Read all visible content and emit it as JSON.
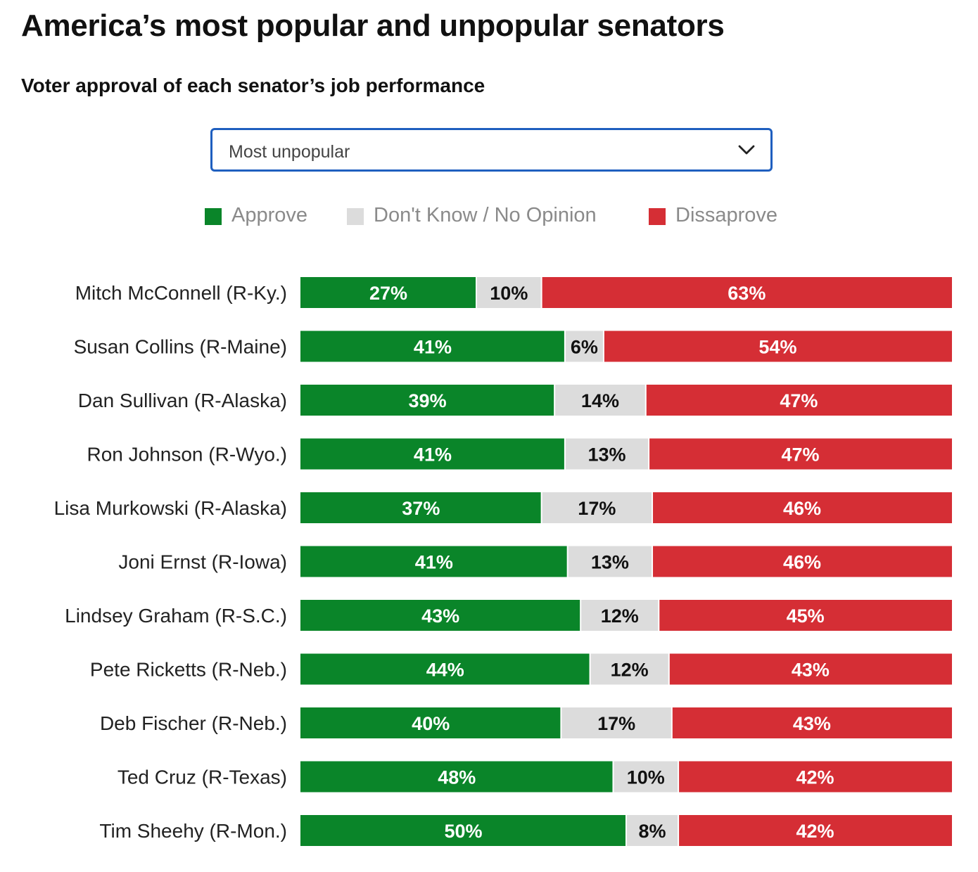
{
  "title": "America’s most popular and unpopular senators",
  "subtitle": "Voter approval of each senator’s job performance",
  "dropdown": {
    "selected": "Most unpopular",
    "icon": "chevron-down-icon"
  },
  "legend": [
    {
      "label": "Approve",
      "color": "#0a8529"
    },
    {
      "label": "Don't Know / No Opinion",
      "color": "#dcdcdc"
    },
    {
      "label": "Dissaprove",
      "color": "#d52e35"
    }
  ],
  "chart_data": {
    "type": "bar",
    "orientation": "horizontal",
    "stacked": true,
    "title": "America’s most popular and unpopular senators",
    "subtitle": "Voter approval of each senator’s job performance",
    "xlabel": "",
    "ylabel": "",
    "xlim": [
      0,
      100
    ],
    "grid": false,
    "legend_position": "top",
    "categories": [
      "Mitch McConnell (R-Ky.)",
      "Susan Collins (R-Maine)",
      "Dan Sullivan (R-Alaska)",
      "Ron Johnson (R-Wyo.)",
      "Lisa Murkowski (R-Alaska)",
      "Joni Ernst (R-Iowa)",
      "Lindsey Graham (R-S.C.)",
      "Pete Ricketts (R-Neb.)",
      "Deb Fischer (R-Neb.)",
      "Ted Cruz (R-Texas)",
      "Tim Sheehy (R-Mon.)"
    ],
    "series": [
      {
        "name": "Approve",
        "color": "#0a8529",
        "label_color": "#ffffff",
        "values": [
          27,
          41,
          39,
          41,
          37,
          41,
          43,
          44,
          40,
          48,
          50
        ]
      },
      {
        "name": "Don't Know / No Opinion",
        "color": "#dcdcdc",
        "label_color": "#111111",
        "values": [
          10,
          6,
          14,
          13,
          17,
          13,
          12,
          12,
          17,
          10,
          8
        ]
      },
      {
        "name": "Dissaprove",
        "color": "#d52e35",
        "label_color": "#ffffff",
        "values": [
          63,
          54,
          47,
          47,
          46,
          46,
          45,
          43,
          43,
          42,
          42
        ]
      }
    ]
  }
}
